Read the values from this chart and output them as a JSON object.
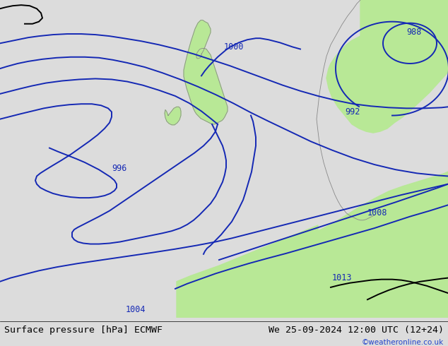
{
  "title_left": "Surface pressure [hPa] ECMWF",
  "title_right": "We 25-09-2024 12:00 UTC (12+24)",
  "copyright": "©weatheronline.co.uk",
  "bg_color": "#dcdcdc",
  "land_color": "#b8e896",
  "isobar_color_blue": "#1428b4",
  "isobar_color_black": "#000000",
  "label_fontsize": 8.5,
  "footer_fontsize": 9.5,
  "copyright_color": "#2244cc",
  "coast_color": "#888888",
  "coast_lw": 0.6,
  "isobar_lw": 1.4
}
